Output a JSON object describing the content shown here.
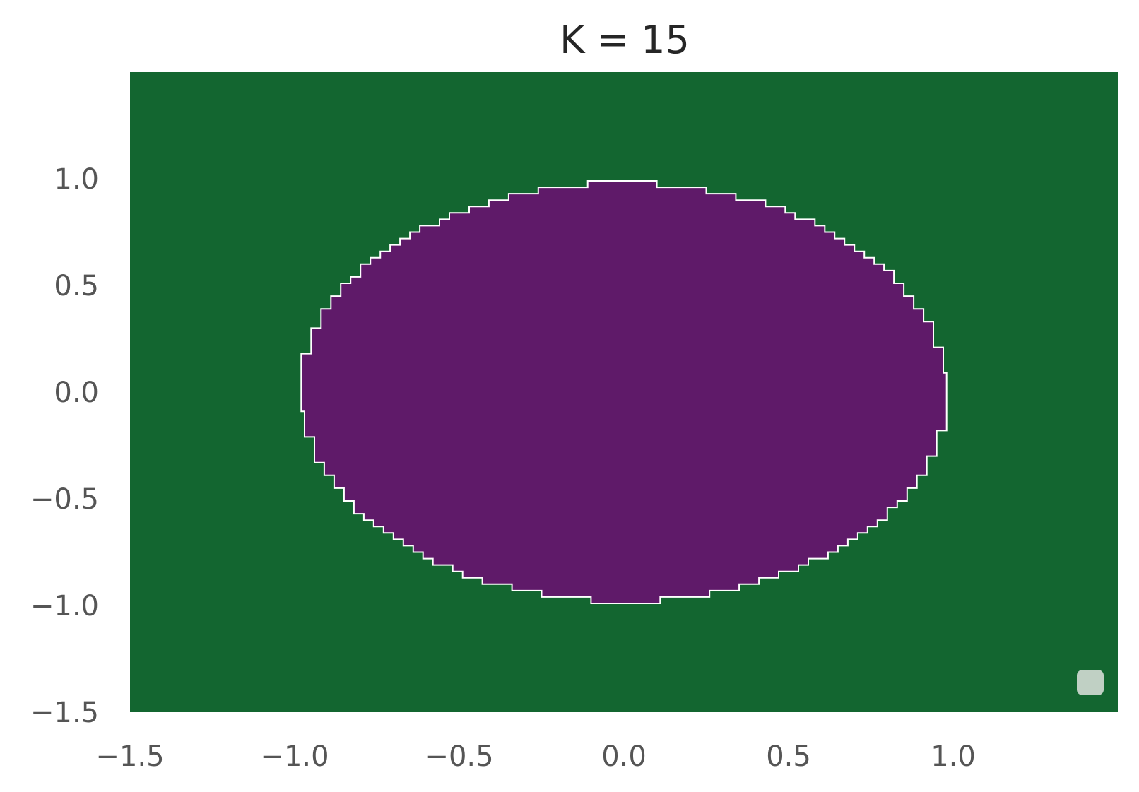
{
  "chart_data": {
    "type": "heatmap",
    "title": "K = 15",
    "xlabel": "",
    "ylabel": "",
    "xlim": [
      -1.5,
      1.5
    ],
    "ylim": [
      -1.5,
      1.5
    ],
    "x_ticks": [
      -1.5,
      -1.0,
      -0.5,
      0.0,
      0.5,
      1.0
    ],
    "x_tick_labels": [
      "−1.5",
      "−1.0",
      "−0.5",
      "0.0",
      "0.5",
      "1.0"
    ],
    "y_ticks": [
      -1.5,
      -1.0,
      -0.5,
      0.0,
      0.5,
      1.0
    ],
    "y_tick_labels": [
      "−1.5",
      "−1.0",
      "−0.5",
      "0.0",
      "0.5",
      "1.0"
    ],
    "grid": false,
    "legend": {
      "placement": "lower-right",
      "entries": []
    },
    "regions": [
      {
        "class": "outer",
        "color": "#136630"
      },
      {
        "class": "inner",
        "color": "#5f1a69",
        "shape": "circle",
        "center": [
          0.0,
          0.0
        ],
        "radius": 0.98
      }
    ],
    "boundary_color": "#ffffff",
    "legend_color": "#c0d0c4"
  }
}
